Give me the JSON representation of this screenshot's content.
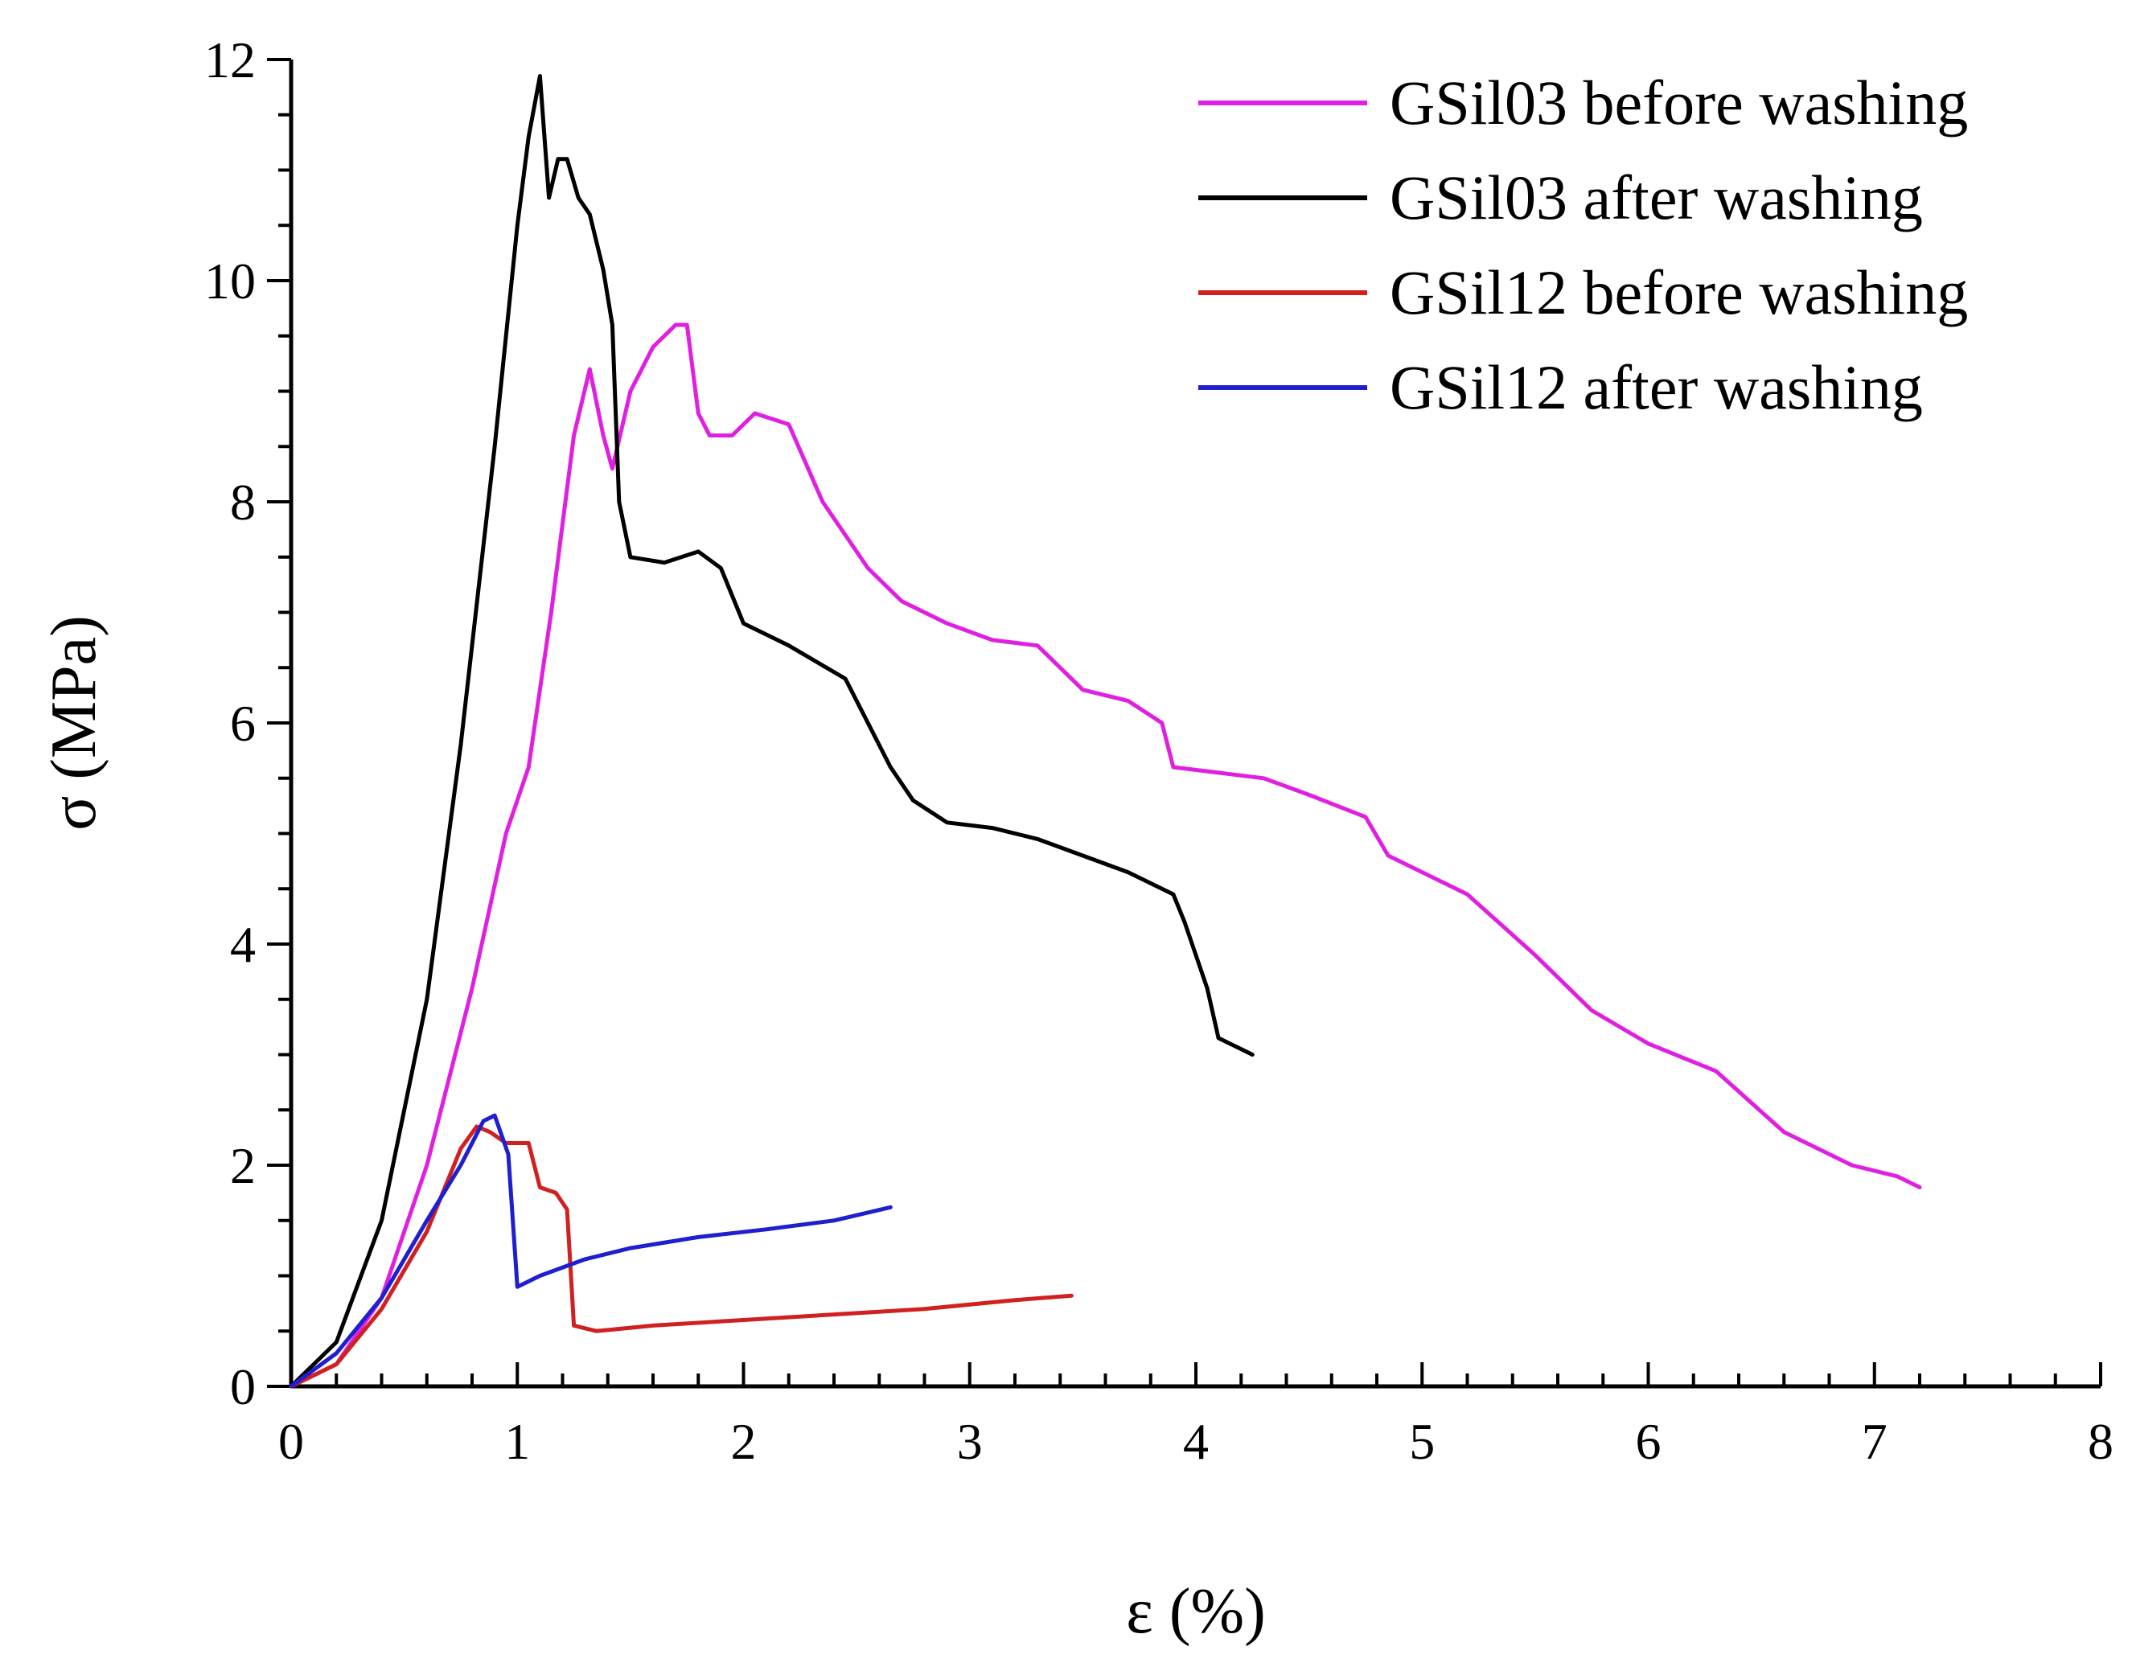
{
  "chart_data": {
    "type": "line",
    "title": "",
    "xlabel": "ε (%)",
    "ylabel": "σ (MPa)",
    "xlim": [
      0,
      8
    ],
    "ylim": [
      0,
      12
    ],
    "xticks": [
      0,
      1,
      2,
      3,
      4,
      5,
      6,
      7,
      8
    ],
    "yticks": [
      0,
      2,
      4,
      6,
      8,
      10,
      12
    ],
    "xtick_labels": [
      "0",
      "1",
      "2",
      "3",
      "4",
      "5",
      "6",
      "7",
      "8"
    ],
    "ytick_labels": [
      "0",
      "2",
      "4",
      "6",
      "8",
      "10",
      "12"
    ],
    "grid": false,
    "legend_position": "top-right",
    "series": [
      {
        "name": "GSil03 before washing",
        "color": "#e020e0",
        "points": [
          [
            0,
            0
          ],
          [
            0.2,
            0.2
          ],
          [
            0.4,
            0.8
          ],
          [
            0.6,
            2.0
          ],
          [
            0.8,
            3.6
          ],
          [
            0.95,
            5.0
          ],
          [
            1.05,
            5.6
          ],
          [
            1.15,
            7.0
          ],
          [
            1.25,
            8.6
          ],
          [
            1.32,
            9.2
          ],
          [
            1.38,
            8.6
          ],
          [
            1.42,
            8.3
          ],
          [
            1.5,
            9.0
          ],
          [
            1.6,
            9.4
          ],
          [
            1.7,
            9.6
          ],
          [
            1.75,
            9.6
          ],
          [
            1.8,
            8.8
          ],
          [
            1.85,
            8.6
          ],
          [
            1.95,
            8.6
          ],
          [
            2.05,
            8.8
          ],
          [
            2.2,
            8.7
          ],
          [
            2.35,
            8.0
          ],
          [
            2.55,
            7.4
          ],
          [
            2.7,
            7.1
          ],
          [
            2.9,
            6.9
          ],
          [
            3.1,
            6.75
          ],
          [
            3.3,
            6.7
          ],
          [
            3.5,
            6.3
          ],
          [
            3.7,
            6.2
          ],
          [
            3.85,
            6.0
          ],
          [
            3.9,
            5.6
          ],
          [
            4.1,
            5.55
          ],
          [
            4.3,
            5.5
          ],
          [
            4.5,
            5.35
          ],
          [
            4.75,
            5.15
          ],
          [
            4.85,
            4.8
          ],
          [
            5.2,
            4.45
          ],
          [
            5.5,
            3.9
          ],
          [
            5.7,
            3.5
          ],
          [
            5.75,
            3.4
          ],
          [
            6.0,
            3.1
          ],
          [
            6.3,
            2.85
          ],
          [
            6.6,
            2.3
          ],
          [
            6.9,
            2.0
          ],
          [
            7.1,
            1.9
          ],
          [
            7.2,
            1.8
          ]
        ]
      },
      {
        "name": "GSil03 after washing",
        "color": "#000000",
        "points": [
          [
            0,
            0
          ],
          [
            0.2,
            0.4
          ],
          [
            0.4,
            1.5
          ],
          [
            0.6,
            3.5
          ],
          [
            0.75,
            5.8
          ],
          [
            0.9,
            8.5
          ],
          [
            1.0,
            10.5
          ],
          [
            1.05,
            11.3
          ],
          [
            1.1,
            11.85
          ],
          [
            1.14,
            10.75
          ],
          [
            1.18,
            11.1
          ],
          [
            1.22,
            11.1
          ],
          [
            1.27,
            10.75
          ],
          [
            1.32,
            10.6
          ],
          [
            1.38,
            10.1
          ],
          [
            1.42,
            9.6
          ],
          [
            1.45,
            8.0
          ],
          [
            1.5,
            7.5
          ],
          [
            1.65,
            7.45
          ],
          [
            1.8,
            7.55
          ],
          [
            1.9,
            7.4
          ],
          [
            2.0,
            6.9
          ],
          [
            2.2,
            6.7
          ],
          [
            2.45,
            6.4
          ],
          [
            2.55,
            6.0
          ],
          [
            2.65,
            5.6
          ],
          [
            2.75,
            5.3
          ],
          [
            2.9,
            5.1
          ],
          [
            3.1,
            5.05
          ],
          [
            3.3,
            4.95
          ],
          [
            3.5,
            4.8
          ],
          [
            3.7,
            4.65
          ],
          [
            3.9,
            4.45
          ],
          [
            3.95,
            4.2
          ],
          [
            4.05,
            3.6
          ],
          [
            4.1,
            3.15
          ],
          [
            4.2,
            3.05
          ],
          [
            4.25,
            3.0
          ]
        ]
      },
      {
        "name": "GSil12 before washing",
        "color": "#d02020",
        "points": [
          [
            0,
            0
          ],
          [
            0.2,
            0.2
          ],
          [
            0.4,
            0.7
          ],
          [
            0.6,
            1.4
          ],
          [
            0.75,
            2.15
          ],
          [
            0.82,
            2.35
          ],
          [
            0.88,
            2.3
          ],
          [
            0.95,
            2.2
          ],
          [
            1.05,
            2.2
          ],
          [
            1.1,
            1.8
          ],
          [
            1.17,
            1.75
          ],
          [
            1.22,
            1.6
          ],
          [
            1.25,
            0.55
          ],
          [
            1.35,
            0.5
          ],
          [
            1.6,
            0.55
          ],
          [
            2.0,
            0.6
          ],
          [
            2.4,
            0.65
          ],
          [
            2.8,
            0.7
          ],
          [
            3.2,
            0.78
          ],
          [
            3.45,
            0.82
          ]
        ]
      },
      {
        "name": "GSil12 after washing",
        "color": "#1f1fd0",
        "points": [
          [
            0,
            0
          ],
          [
            0.2,
            0.3
          ],
          [
            0.4,
            0.8
          ],
          [
            0.6,
            1.5
          ],
          [
            0.75,
            2.0
          ],
          [
            0.85,
            2.4
          ],
          [
            0.9,
            2.45
          ],
          [
            0.96,
            2.1
          ],
          [
            1.0,
            0.9
          ],
          [
            1.1,
            1.0
          ],
          [
            1.3,
            1.15
          ],
          [
            1.5,
            1.25
          ],
          [
            1.8,
            1.35
          ],
          [
            2.1,
            1.42
          ],
          [
            2.4,
            1.5
          ],
          [
            2.65,
            1.62
          ]
        ]
      }
    ]
  }
}
